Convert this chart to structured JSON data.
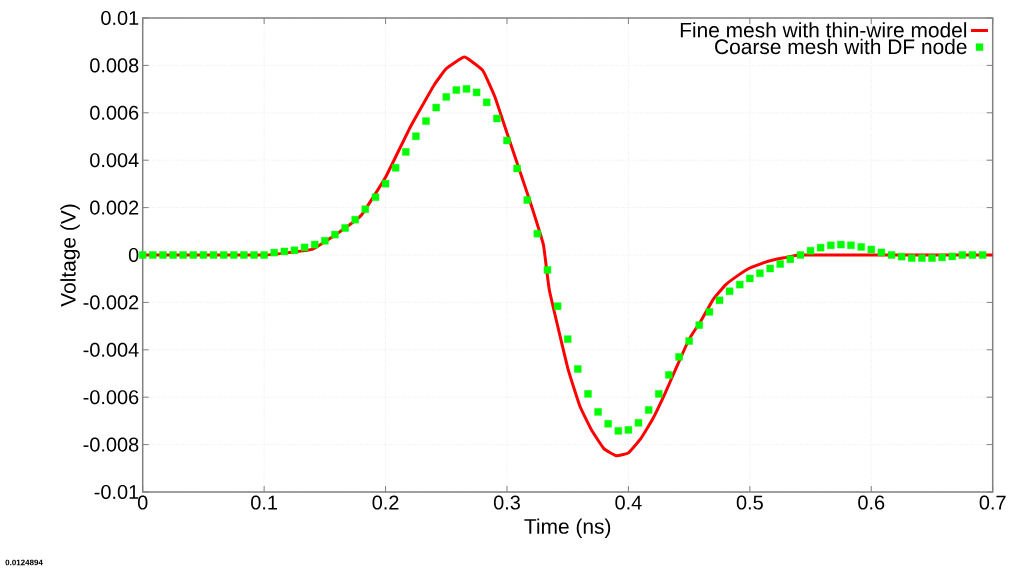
{
  "chart_data": {
    "type": "line",
    "xlabel": "Time (ns)",
    "ylabel": "Voltage (V)",
    "annotations": [
      "0.0124894"
    ],
    "xlim": [
      0,
      0.7
    ],
    "ylim": [
      -0.01,
      0.01
    ],
    "xticks": [
      0,
      0.1,
      0.2,
      0.3,
      0.4,
      0.5,
      0.6,
      0.7
    ],
    "yticks": [
      -0.01,
      -0.008,
      -0.006,
      -0.004,
      -0.002,
      0,
      0.002,
      0.004,
      0.006,
      0.008,
      0.01
    ],
    "grid": true,
    "legend": "top right",
    "series": [
      {
        "name": "Fine mesh with thin-wire model",
        "color": "#ff0000",
        "marker": "none",
        "x": [
          0,
          0.05,
          0.1,
          0.12,
          0.14,
          0.16,
          0.18,
          0.2,
          0.22,
          0.24,
          0.25,
          0.265,
          0.28,
          0.29,
          0.3,
          0.31,
          0.32,
          0.33,
          0.335,
          0.35,
          0.36,
          0.37,
          0.38,
          0.39,
          0.4,
          0.41,
          0.42,
          0.43,
          0.44,
          0.45,
          0.46,
          0.47,
          0.48,
          0.49,
          0.5,
          0.51,
          0.52,
          0.53,
          0.54,
          0.56,
          0.7
        ],
        "values": [
          0,
          0,
          0,
          0.0001,
          0.00025,
          0.0009,
          0.00168,
          0.00328,
          0.00536,
          0.00717,
          0.00786,
          0.00835,
          0.00779,
          0.00668,
          0.00515,
          0.00363,
          0.0021,
          0.00043,
          -0.00151,
          -0.00476,
          -0.00637,
          -0.00742,
          -0.00818,
          -0.00847,
          -0.00835,
          -0.00776,
          -0.00692,
          -0.00586,
          -0.00469,
          -0.00355,
          -0.00275,
          -0.00186,
          -0.00126,
          -0.00087,
          -0.00055,
          -0.00035,
          -0.0002,
          -0.0001,
          0,
          0,
          0
        ]
      },
      {
        "name": "Coarse mesh with DF node",
        "type": "scatter",
        "color": "#00ff00",
        "marker": "square",
        "x": [
          0,
          0.0083,
          0.0167,
          0.025,
          0.0333,
          0.0417,
          0.05,
          0.0583,
          0.0667,
          0.075,
          0.0833,
          0.0917,
          0.1,
          0.1083,
          0.1167,
          0.125,
          0.1333,
          0.1417,
          0.15,
          0.1583,
          0.1667,
          0.175,
          0.1833,
          0.1917,
          0.2,
          0.2083,
          0.2167,
          0.225,
          0.2333,
          0.2417,
          0.25,
          0.2583,
          0.2667,
          0.275,
          0.2833,
          0.2917,
          0.3,
          0.3083,
          0.3167,
          0.325,
          0.3333,
          0.3417,
          0.35,
          0.3583,
          0.3667,
          0.375,
          0.3833,
          0.3917,
          0.4,
          0.4083,
          0.4167,
          0.425,
          0.4333,
          0.4417,
          0.45,
          0.4583,
          0.4667,
          0.475,
          0.4833,
          0.4917,
          0.5,
          0.5083,
          0.5167,
          0.525,
          0.5333,
          0.5417,
          0.55,
          0.5583,
          0.5667,
          0.575,
          0.5833,
          0.5917,
          0.6,
          0.6083,
          0.6167,
          0.625,
          0.6333,
          0.6417,
          0.65,
          0.6583,
          0.6667,
          0.675,
          0.6833,
          0.6917
        ],
        "values": [
          0,
          0,
          0,
          0,
          0,
          0,
          0,
          0,
          0,
          0,
          0,
          0,
          0,
          0.0001,
          0.00015,
          0.0002,
          0.00032,
          0.00044,
          0.0006,
          0.00086,
          0.00114,
          0.00149,
          0.00193,
          0.00244,
          0.00301,
          0.00368,
          0.00435,
          0.00501,
          0.00565,
          0.00622,
          0.00667,
          0.00696,
          0.00701,
          0.00686,
          0.00644,
          0.00576,
          0.00483,
          0.00365,
          0.00232,
          0.0009,
          -0.00063,
          -0.00216,
          -0.00355,
          -0.00481,
          -0.00586,
          -0.00662,
          -0.00712,
          -0.00742,
          -0.00738,
          -0.00708,
          -0.00654,
          -0.00586,
          -0.00506,
          -0.0043,
          -0.00363,
          -0.00296,
          -0.0024,
          -0.00191,
          -0.00153,
          -0.00125,
          -0.00099,
          -0.00077,
          -0.00057,
          -0.00038,
          -0.00018,
          0,
          0.00018,
          0.00031,
          0.00041,
          0.00044,
          0.00041,
          0.00034,
          0.00023,
          0.00011,
          0,
          -7e-05,
          -0.00013,
          -0.00013,
          -0.00013,
          -0.0001,
          -6e-05,
          0,
          0,
          0
        ]
      }
    ]
  }
}
